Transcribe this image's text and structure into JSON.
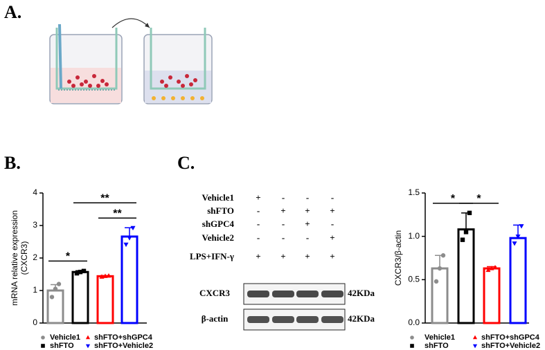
{
  "panels": [
    "A.",
    "B.",
    "C."
  ],
  "blot": {
    "rows": [
      {
        "label": "Vehicle1",
        "signs": [
          "+",
          "-",
          "-",
          "-"
        ]
      },
      {
        "label": "shFTO",
        "signs": [
          "-",
          "+",
          "+",
          "+"
        ]
      },
      {
        "label": "shGPC4",
        "signs": [
          "-",
          "-",
          "+",
          "-"
        ]
      },
      {
        "label": "Vehicle2",
        "signs": [
          "-",
          "-",
          "-",
          "+"
        ]
      },
      {
        "label": "LPS+IFN-γ",
        "signs": [
          "+",
          "+",
          "+",
          "+"
        ]
      }
    ],
    "bands": [
      {
        "label": "CXCR3",
        "size": "42KDa"
      },
      {
        "label": "β-actin",
        "size": "42KDa"
      }
    ]
  },
  "chart_data": [
    {
      "type": "bar",
      "ylabel": [
        "mRNA relative expression",
        "(CXCR3)"
      ],
      "categories": [
        "Vehicle1",
        "shFTO",
        "shFTO+shGPC4",
        "shFTO+Vehicle2"
      ],
      "colors": [
        "#8c8c8c",
        "#000000",
        "#ff0000",
        "#0000ff"
      ],
      "markers": [
        "circle",
        "square",
        "triangle-up",
        "triangle-down"
      ],
      "values": [
        1.0,
        1.57,
        1.44,
        2.66
      ],
      "errors": [
        0.18,
        0.04,
        0.02,
        0.27
      ],
      "points": [
        [
          0.8,
          1.05,
          1.2
        ],
        [
          1.53,
          1.57,
          1.6
        ],
        [
          1.42,
          1.44,
          1.45
        ],
        [
          2.42,
          2.62,
          2.93
        ]
      ],
      "ylim": [
        0,
        4
      ],
      "yticks": [
        0,
        1,
        2,
        3,
        4
      ],
      "significance": [
        {
          "pair": [
            "Vehicle1",
            "shFTO"
          ],
          "label": "*"
        },
        {
          "pair": [
            "shFTO+shGPC4",
            "shFTO+Vehicle2"
          ],
          "label": "**"
        },
        {
          "pair": [
            "shFTO",
            "shFTO+Vehicle2"
          ],
          "label": "**"
        }
      ]
    },
    {
      "type": "bar",
      "ylabel": [
        "CXCR3/β-actin"
      ],
      "categories": [
        "Vehicle1",
        "shFTO",
        "shFTO+shGPC4",
        "shFTO+Vehicle2"
      ],
      "colors": [
        "#8c8c8c",
        "#000000",
        "#ff0000",
        "#0000ff"
      ],
      "markers": [
        "circle",
        "square",
        "triangle-up",
        "triangle-down"
      ],
      "values": [
        0.63,
        1.08,
        0.63,
        0.98
      ],
      "errors": [
        0.15,
        0.19,
        0.02,
        0.15
      ],
      "points": [
        [
          0.48,
          0.63,
          0.78
        ],
        [
          0.96,
          1.05,
          1.27
        ],
        [
          0.61,
          0.63,
          0.64
        ],
        [
          0.92,
          1.0,
          1.12
        ]
      ],
      "ylim": [
        0,
        1.5
      ],
      "yticks": [
        {
          "value": 0,
          "label": "0.0"
        },
        {
          "value": 0.5,
          "label": "0.5"
        },
        {
          "value": 1,
          "label": "1.0"
        },
        {
          "value": 1.5,
          "label": "1.5"
        }
      ],
      "significance": [
        {
          "pair": [
            "Vehicle1",
            "shFTO"
          ],
          "label": "*"
        },
        {
          "pair": [
            "shFTO",
            "shFTO+shGPC4"
          ],
          "label": "*"
        }
      ]
    }
  ]
}
